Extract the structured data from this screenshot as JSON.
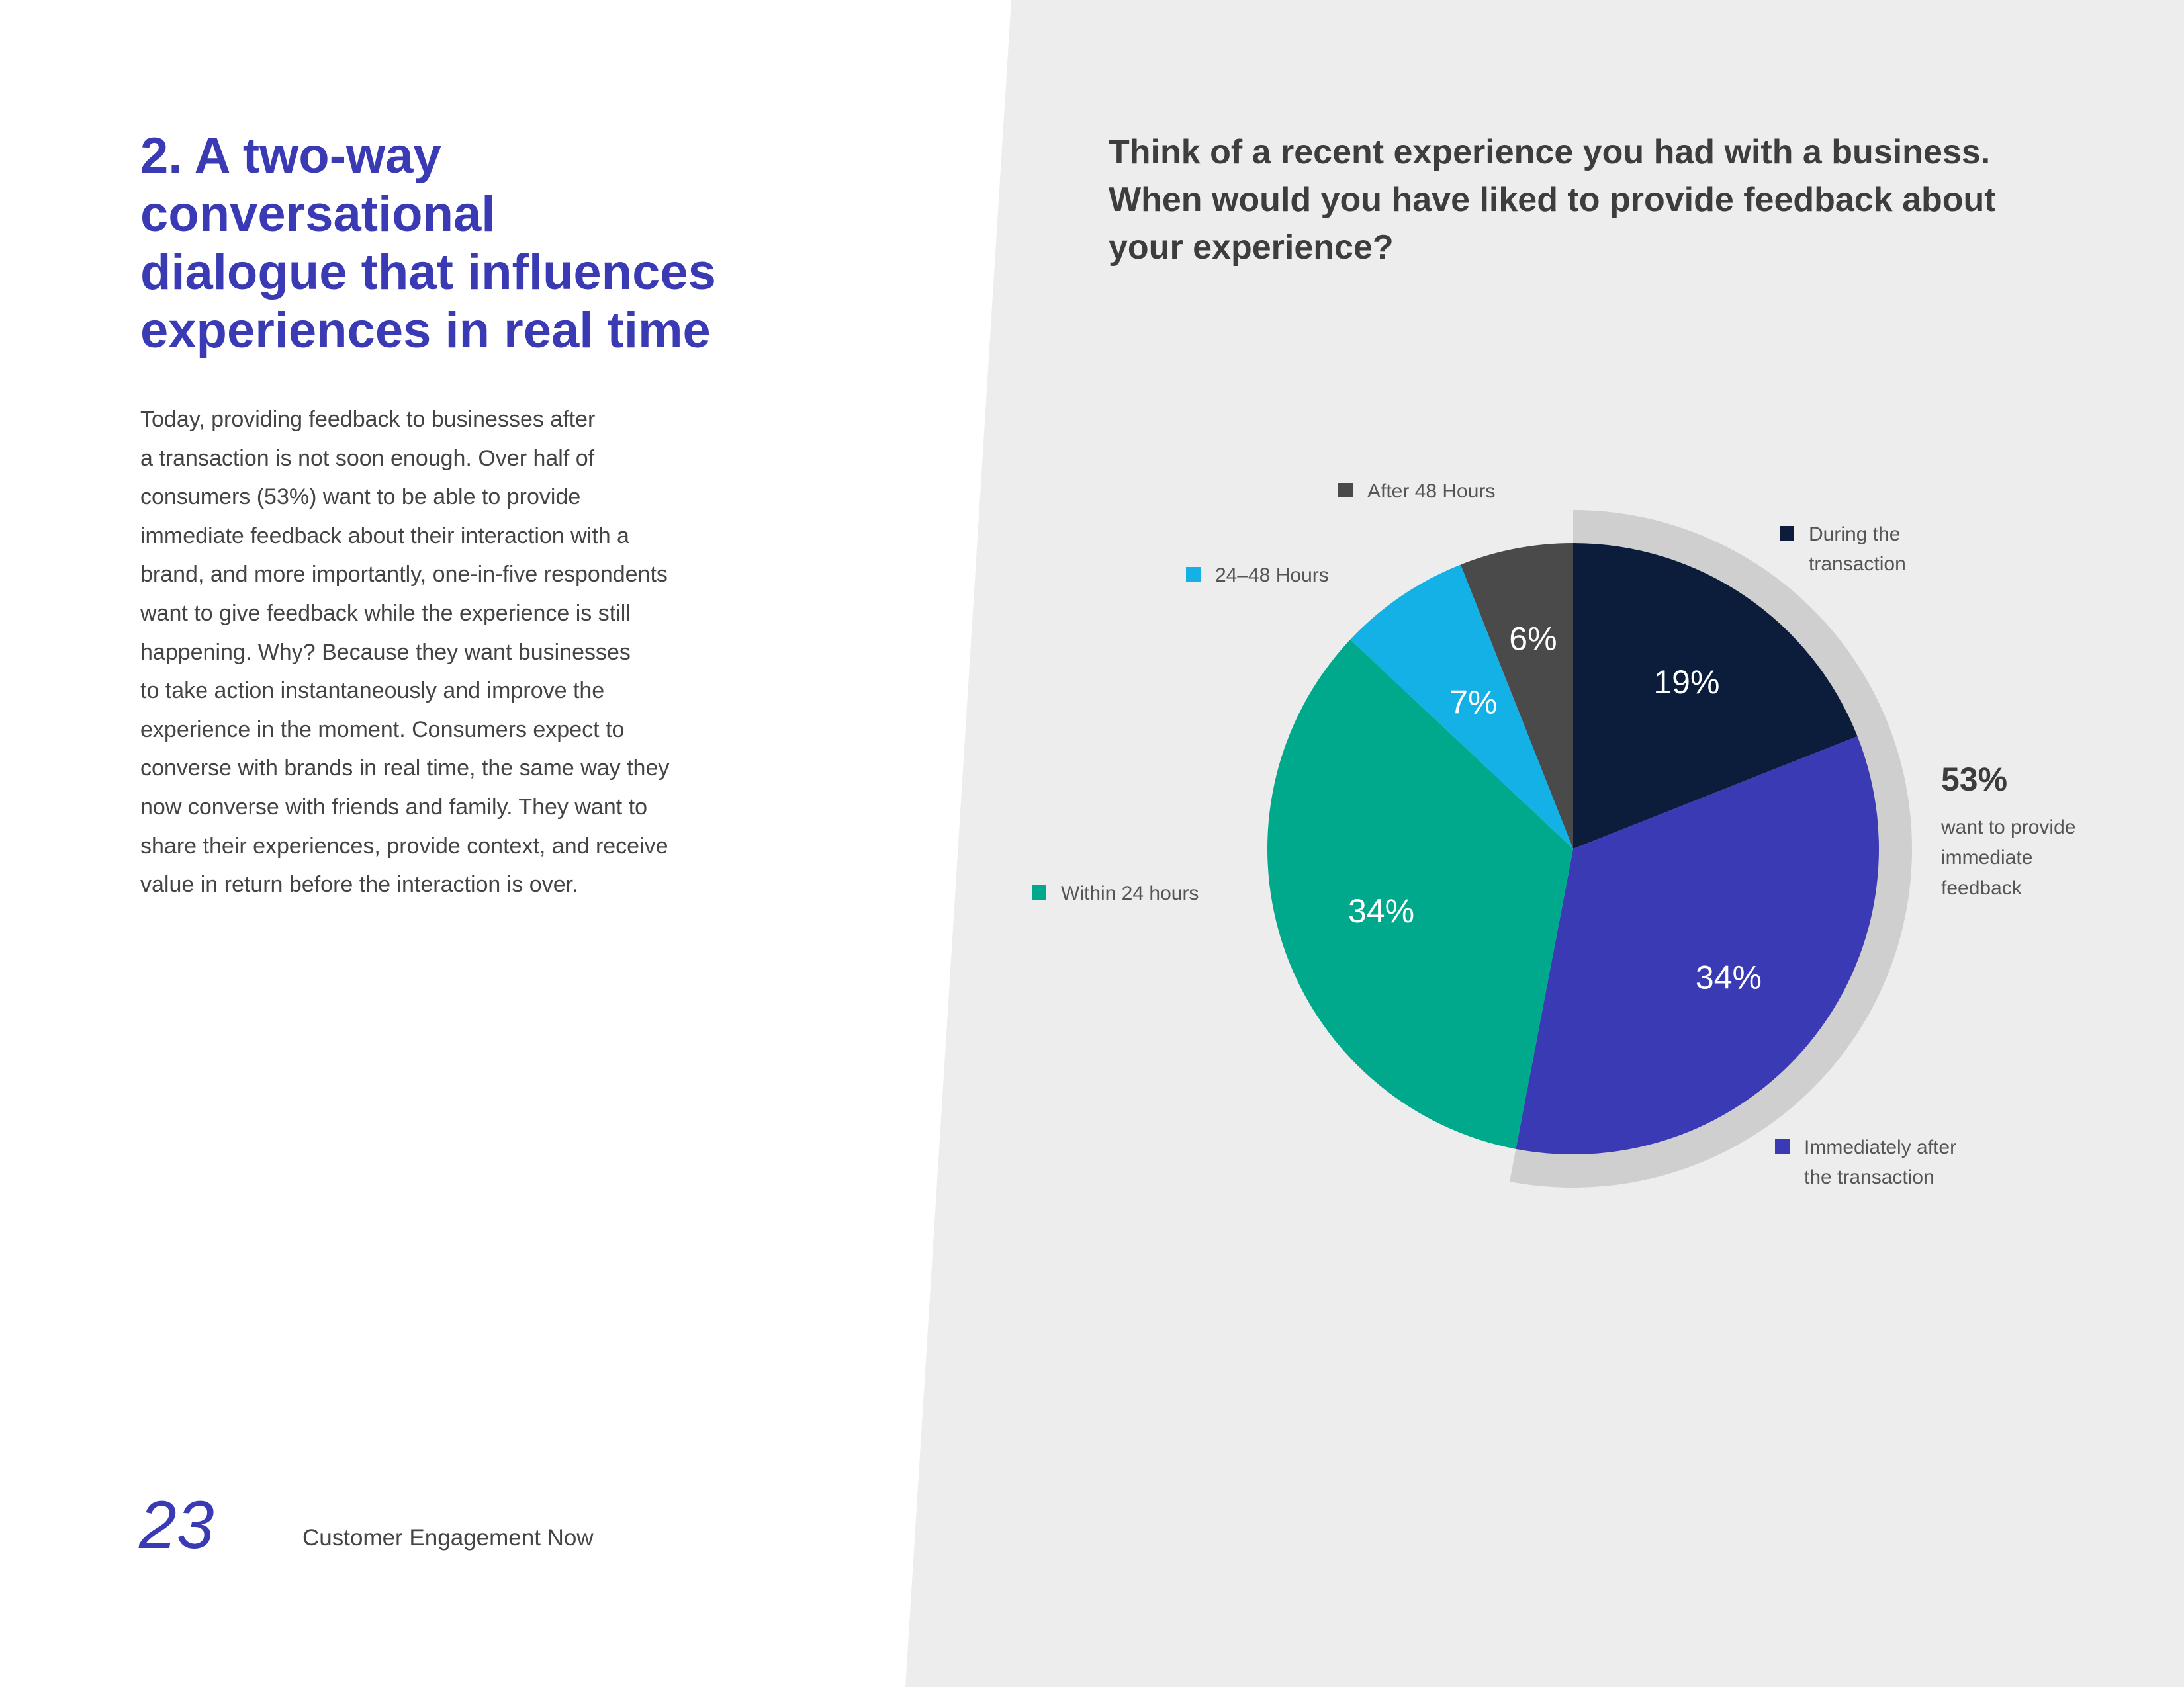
{
  "left": {
    "heading_lines": [
      "2. A two-way",
      "conversational",
      "dialogue that influences",
      "experiences in real time"
    ],
    "body_lines": [
      "Today, providing feedback to businesses after",
      "a transaction is not soon enough. Over half of",
      "consumers (53%) want to be able to provide",
      "immediate feedback about their interaction with a",
      "brand, and more importantly, one-in-five respondents",
      "want to give feedback while the experience is still",
      "happening. Why? Because they want businesses",
      "to take action instantaneously and improve the",
      "experience in the moment. Consumers expect to",
      "converse with brands in real time, the same way they",
      "now converse with friends and family. They want to",
      "share their experiences, provide context, and receive",
      "value in return before the interaction is over."
    ]
  },
  "footer": {
    "page_number": "23",
    "title": "Customer Engagement Now"
  },
  "colors": {
    "panel_background": "#ededed",
    "accent": "#3a3bb4",
    "highlight_ring": "#cfcfcf"
  },
  "chart_data": {
    "type": "pie",
    "title_lines": [
      "Think of a recent experience you had with a business.",
      "When would you have liked to provide feedback about",
      "your experience?"
    ],
    "start_angle_deg": 0,
    "direction": "clockwise",
    "slices": [
      {
        "legend_lines": [
          "During the",
          "transaction"
        ],
        "value": 19,
        "label": "19%",
        "color": "#0b1d3a"
      },
      {
        "legend_lines": [
          "Immediately after",
          "the transaction"
        ],
        "value": 34,
        "label": "34%",
        "color": "#3a3bb4"
      },
      {
        "legend_lines": [
          "Within 24 hours"
        ],
        "value": 34,
        "label": "34%",
        "color": "#00a98c"
      },
      {
        "legend_lines": [
          "24–48 Hours"
        ],
        "value": 7,
        "label": "7%",
        "color": "#13b1e6"
      },
      {
        "legend_lines": [
          "After 48 Hours"
        ],
        "value": 6,
        "label": "6%",
        "color": "#4a4a4a"
      }
    ],
    "callout": {
      "value": "53%",
      "text_lines": [
        "want to provide",
        "immediate",
        "feedback"
      ],
      "covers_slices": [
        0,
        1
      ]
    }
  }
}
